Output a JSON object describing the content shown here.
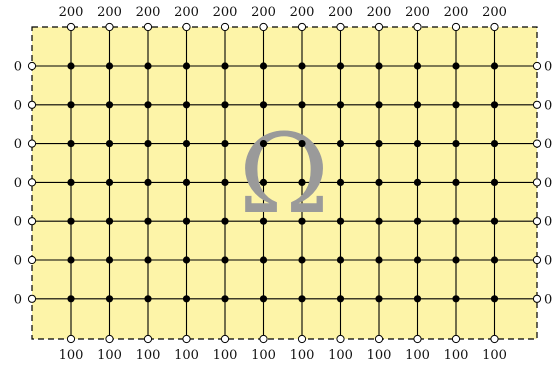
{
  "diagram": {
    "domain_symbol": "Ω",
    "top_boundary_value": "200",
    "bottom_boundary_value": "100",
    "left_boundary_value": "0",
    "right_boundary_value": "0",
    "interior_columns": 12,
    "interior_rows": 7,
    "domain_fill": "#fdf4a8",
    "boundary_stroke": "#000000"
  }
}
